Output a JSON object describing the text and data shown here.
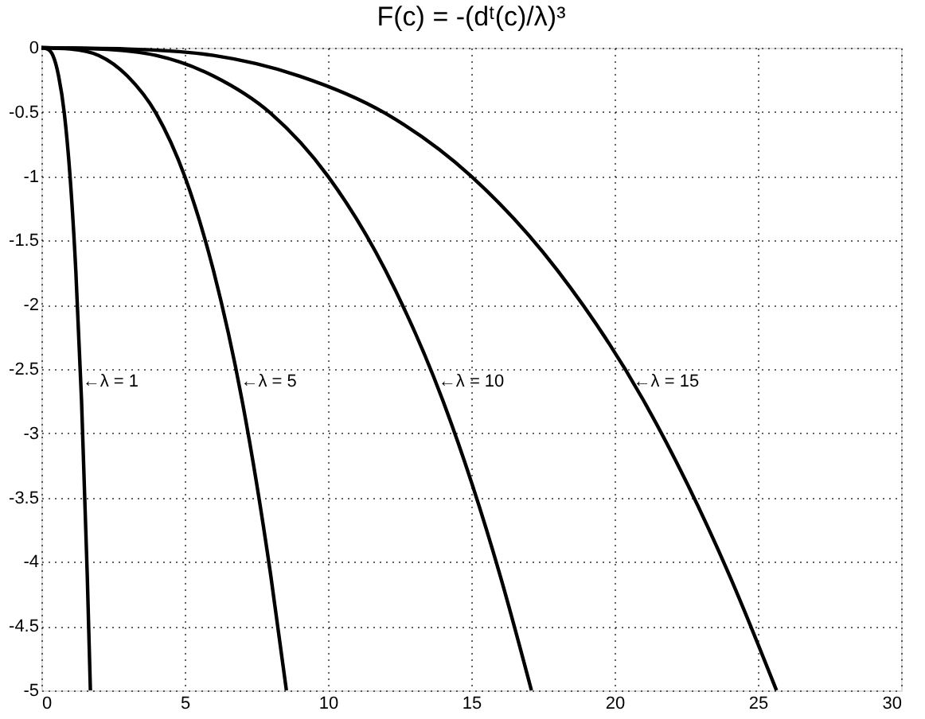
{
  "chart_data": {
    "type": "line",
    "title": "F(c) = -(dᵗ(c)/λ)³",
    "series": [
      {
        "color": "#000000",
        "x": [
          0,
          0.2,
          0.4,
          0.6,
          0.8,
          1.0,
          1.2,
          1.4,
          1.6,
          1.71
        ],
        "values": [
          0,
          -0.01,
          -0.06,
          -0.22,
          -0.51,
          -1.0,
          -1.73,
          -2.74,
          -4.1,
          -5.0
        ]
      },
      {
        "color": "#000000",
        "x": [
          0,
          1,
          2,
          3,
          4,
          5,
          6,
          7,
          8,
          8.55
        ],
        "values": [
          0,
          -0.01,
          -0.06,
          -0.22,
          -0.51,
          -1.0,
          -1.73,
          -2.74,
          -4.1,
          -5.0
        ]
      },
      {
        "color": "#000000",
        "x": [
          0,
          2,
          4,
          6,
          8,
          10,
          12,
          14,
          16,
          17.1
        ],
        "values": [
          0,
          -0.01,
          -0.06,
          -0.22,
          -0.51,
          -1.0,
          -1.73,
          -2.74,
          -4.1,
          -5.0
        ]
      },
      {
        "color": "#000000",
        "x": [
          0,
          3,
          6,
          9,
          12,
          15,
          18,
          21,
          24,
          25.65
        ],
        "values": [
          0,
          -0.01,
          -0.06,
          -0.22,
          -0.51,
          -1.0,
          -1.73,
          -2.74,
          -4.1,
          -5.0
        ]
      }
    ],
    "annotations": [
      {
        "text": "←λ = 1",
        "x": 1.38,
        "y": -2.6
      },
      {
        "text": "←λ = 5",
        "x": 6.9,
        "y": -2.6
      },
      {
        "text": "←λ = 10",
        "x": 13.8,
        "y": -2.6
      },
      {
        "text": "←λ = 15",
        "x": 20.6,
        "y": -2.6
      }
    ],
    "xlim": [
      0,
      30
    ],
    "xticks": [
      0,
      5,
      10,
      15,
      20,
      25,
      30
    ],
    "ylim": [
      -5,
      0
    ],
    "yticks": [
      -5,
      -4.5,
      -4,
      -3.5,
      -3,
      -2.5,
      -2,
      -1.5,
      -1,
      -0.5,
      0
    ],
    "grid": true,
    "line_style": "solid",
    "marker": "none"
  }
}
